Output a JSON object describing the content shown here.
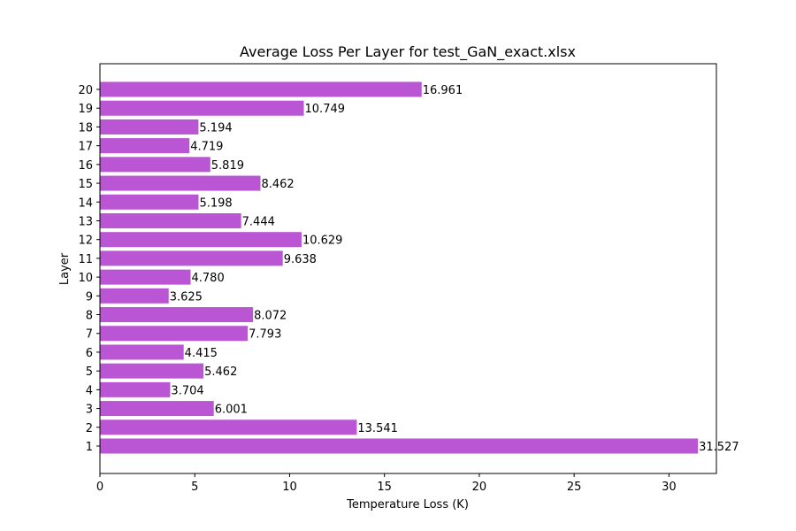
{
  "chart_data": {
    "type": "bar",
    "orientation": "horizontal",
    "title": "Average Loss Per Layer for test_GaN_exact.xlsx",
    "xlabel": "Temperature Loss (K)",
    "ylabel": "Layer",
    "xlim": [
      0,
      32.5
    ],
    "xticks": [
      0,
      5,
      10,
      15,
      20,
      25,
      30
    ],
    "grid": false,
    "bar_color": "#ba55d3",
    "categories": [
      "1",
      "2",
      "3",
      "4",
      "5",
      "6",
      "7",
      "8",
      "9",
      "10",
      "11",
      "12",
      "13",
      "14",
      "15",
      "16",
      "17",
      "18",
      "19",
      "20"
    ],
    "values": [
      31.527,
      13.541,
      6.001,
      3.704,
      5.462,
      4.415,
      7.793,
      8.072,
      3.625,
      4.78,
      9.638,
      10.629,
      7.444,
      5.198,
      8.462,
      5.819,
      4.719,
      5.194,
      10.749,
      16.961
    ],
    "value_labels": [
      "31.527",
      "13.541",
      "6.001",
      "3.704",
      "5.462",
      "4.415",
      "7.793",
      "8.072",
      "3.625",
      "4.780",
      "9.638",
      "10.629",
      "7.444",
      "5.198",
      "8.462",
      "5.819",
      "4.719",
      "5.194",
      "10.749",
      "16.961"
    ]
  }
}
